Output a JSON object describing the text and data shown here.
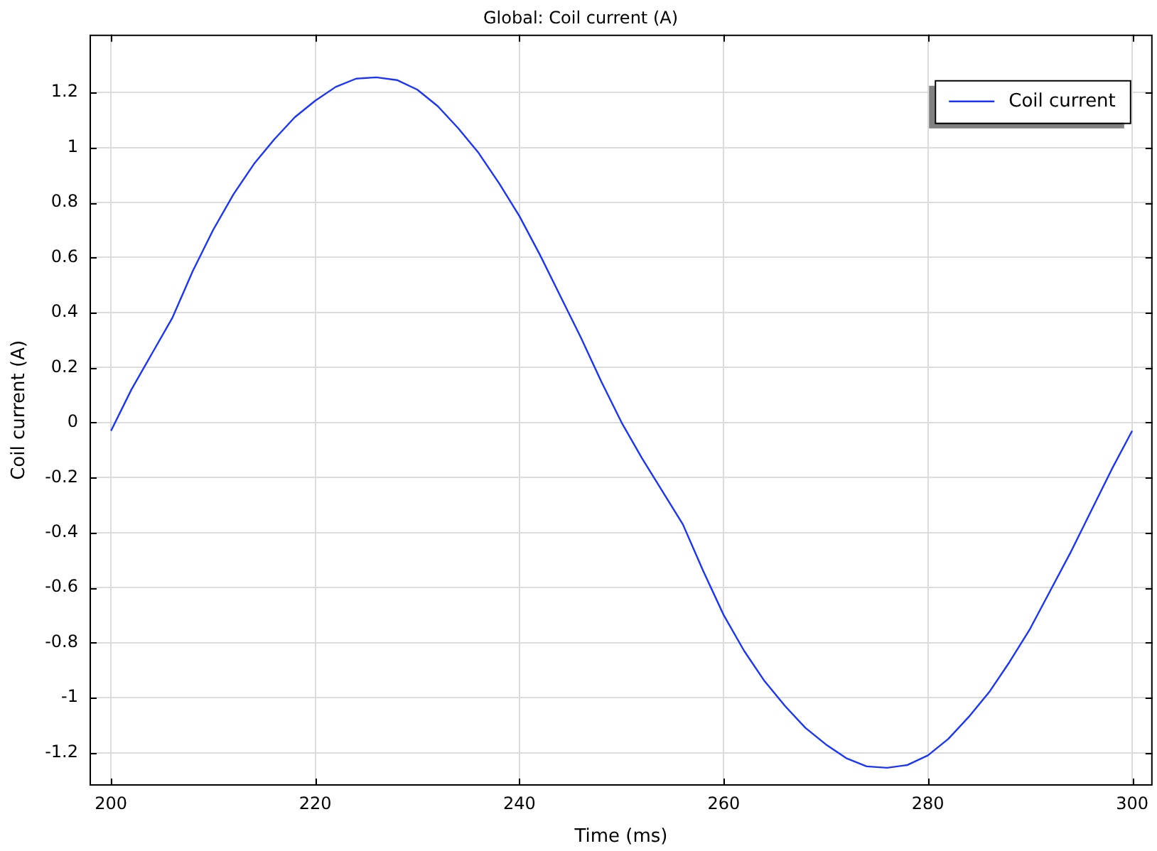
{
  "chart_data": {
    "type": "line",
    "title": "Global: Coil current (A)",
    "xlabel": "Time (ms)",
    "ylabel": "Coil current (A)",
    "x": [
      200,
      202,
      204,
      206,
      208,
      210,
      212,
      214,
      216,
      218,
      220,
      222,
      224,
      226,
      228,
      230,
      232,
      234,
      236,
      238,
      240,
      242,
      244,
      246,
      248,
      250,
      252,
      254,
      256,
      258,
      260,
      262,
      264,
      266,
      268,
      270,
      272,
      274,
      276,
      278,
      280,
      282,
      284,
      286,
      288,
      290,
      292,
      294,
      296,
      298,
      300
    ],
    "series": [
      {
        "name": "Coil current",
        "color": "#1a34ff",
        "values": [
          -0.03,
          0.12,
          0.25,
          0.38,
          0.55,
          0.7,
          0.83,
          0.94,
          1.03,
          1.11,
          1.17,
          1.22,
          1.25,
          1.255,
          1.245,
          1.21,
          1.15,
          1.07,
          0.98,
          0.87,
          0.75,
          0.61,
          0.46,
          0.31,
          0.15,
          0.0,
          -0.13,
          -0.25,
          -0.37,
          -0.54,
          -0.7,
          -0.83,
          -0.94,
          -1.03,
          -1.11,
          -1.17,
          -1.22,
          -1.25,
          -1.255,
          -1.245,
          -1.21,
          -1.15,
          -1.07,
          -0.98,
          -0.87,
          -0.75,
          -0.61,
          -0.47,
          -0.32,
          -0.17,
          -0.03
        ]
      }
    ],
    "xlim": [
      197.9,
      302
    ],
    "xticks": [
      200,
      220,
      240,
      260,
      280,
      300
    ],
    "ylim": [
      -1.32,
      1.41
    ],
    "yticks": [
      -1.2,
      -1,
      -0.8,
      -0.6,
      -0.4,
      -0.2,
      0,
      0.2,
      0.4,
      0.6,
      0.8,
      1,
      1.2
    ],
    "grid": true,
    "legend": "top right",
    "marker": "none",
    "line_style": "solid"
  }
}
